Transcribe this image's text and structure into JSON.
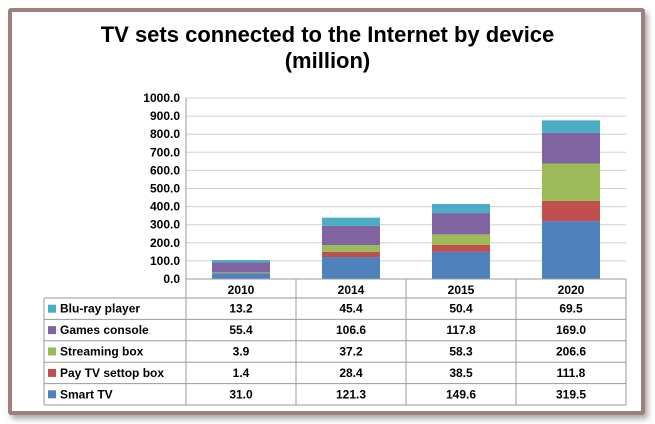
{
  "chart_data": {
    "type": "bar",
    "stacked": true,
    "title_line1": "TV sets connected to the Internet by device",
    "title_line2": "(million)",
    "categories": [
      "2010",
      "2014",
      "2015",
      "2020"
    ],
    "ylim": [
      0,
      1000
    ],
    "ytick_step": 100,
    "ytick_labels": [
      "0.0",
      "100.0",
      "200.0",
      "300.0",
      "400.0",
      "500.0",
      "600.0",
      "700.0",
      "800.0",
      "900.0",
      "1000.0"
    ],
    "grid": true,
    "legend": "table-below",
    "series": [
      {
        "name": "Smart TV",
        "color": "#4f81bd",
        "values": [
          31.0,
          121.3,
          149.6,
          319.5
        ]
      },
      {
        "name": "Pay TV settop box",
        "color": "#c0504d",
        "values": [
          1.4,
          28.4,
          38.5,
          111.8
        ]
      },
      {
        "name": "Streaming box",
        "color": "#9bbb59",
        "values": [
          3.9,
          37.2,
          58.3,
          206.6
        ]
      },
      {
        "name": "Games console",
        "color": "#8064a2",
        "values": [
          55.4,
          106.6,
          117.8,
          169.0
        ]
      },
      {
        "name": "Blu-ray player",
        "color": "#4bacc6",
        "values": [
          13.2,
          45.4,
          50.4,
          69.5
        ]
      }
    ],
    "table_rows_order": [
      "Blu-ray player",
      "Games console",
      "Streaming box",
      "Pay TV settop box",
      "Smart TV"
    ],
    "table_values_display": {
      "Blu-ray player": [
        "13.2",
        "45.4",
        "50.4",
        "69.5"
      ],
      "Games console": [
        "55.4",
        "106.6",
        "117.8",
        "169.0"
      ],
      "Streaming box": [
        "3.9",
        "37.2",
        "58.3",
        "206.6"
      ],
      "Pay TV settop box": [
        "1.4",
        "28.4",
        "38.5",
        "111.8"
      ],
      "Smart TV": [
        "31.0",
        "121.3",
        "149.6",
        "319.5"
      ]
    }
  }
}
